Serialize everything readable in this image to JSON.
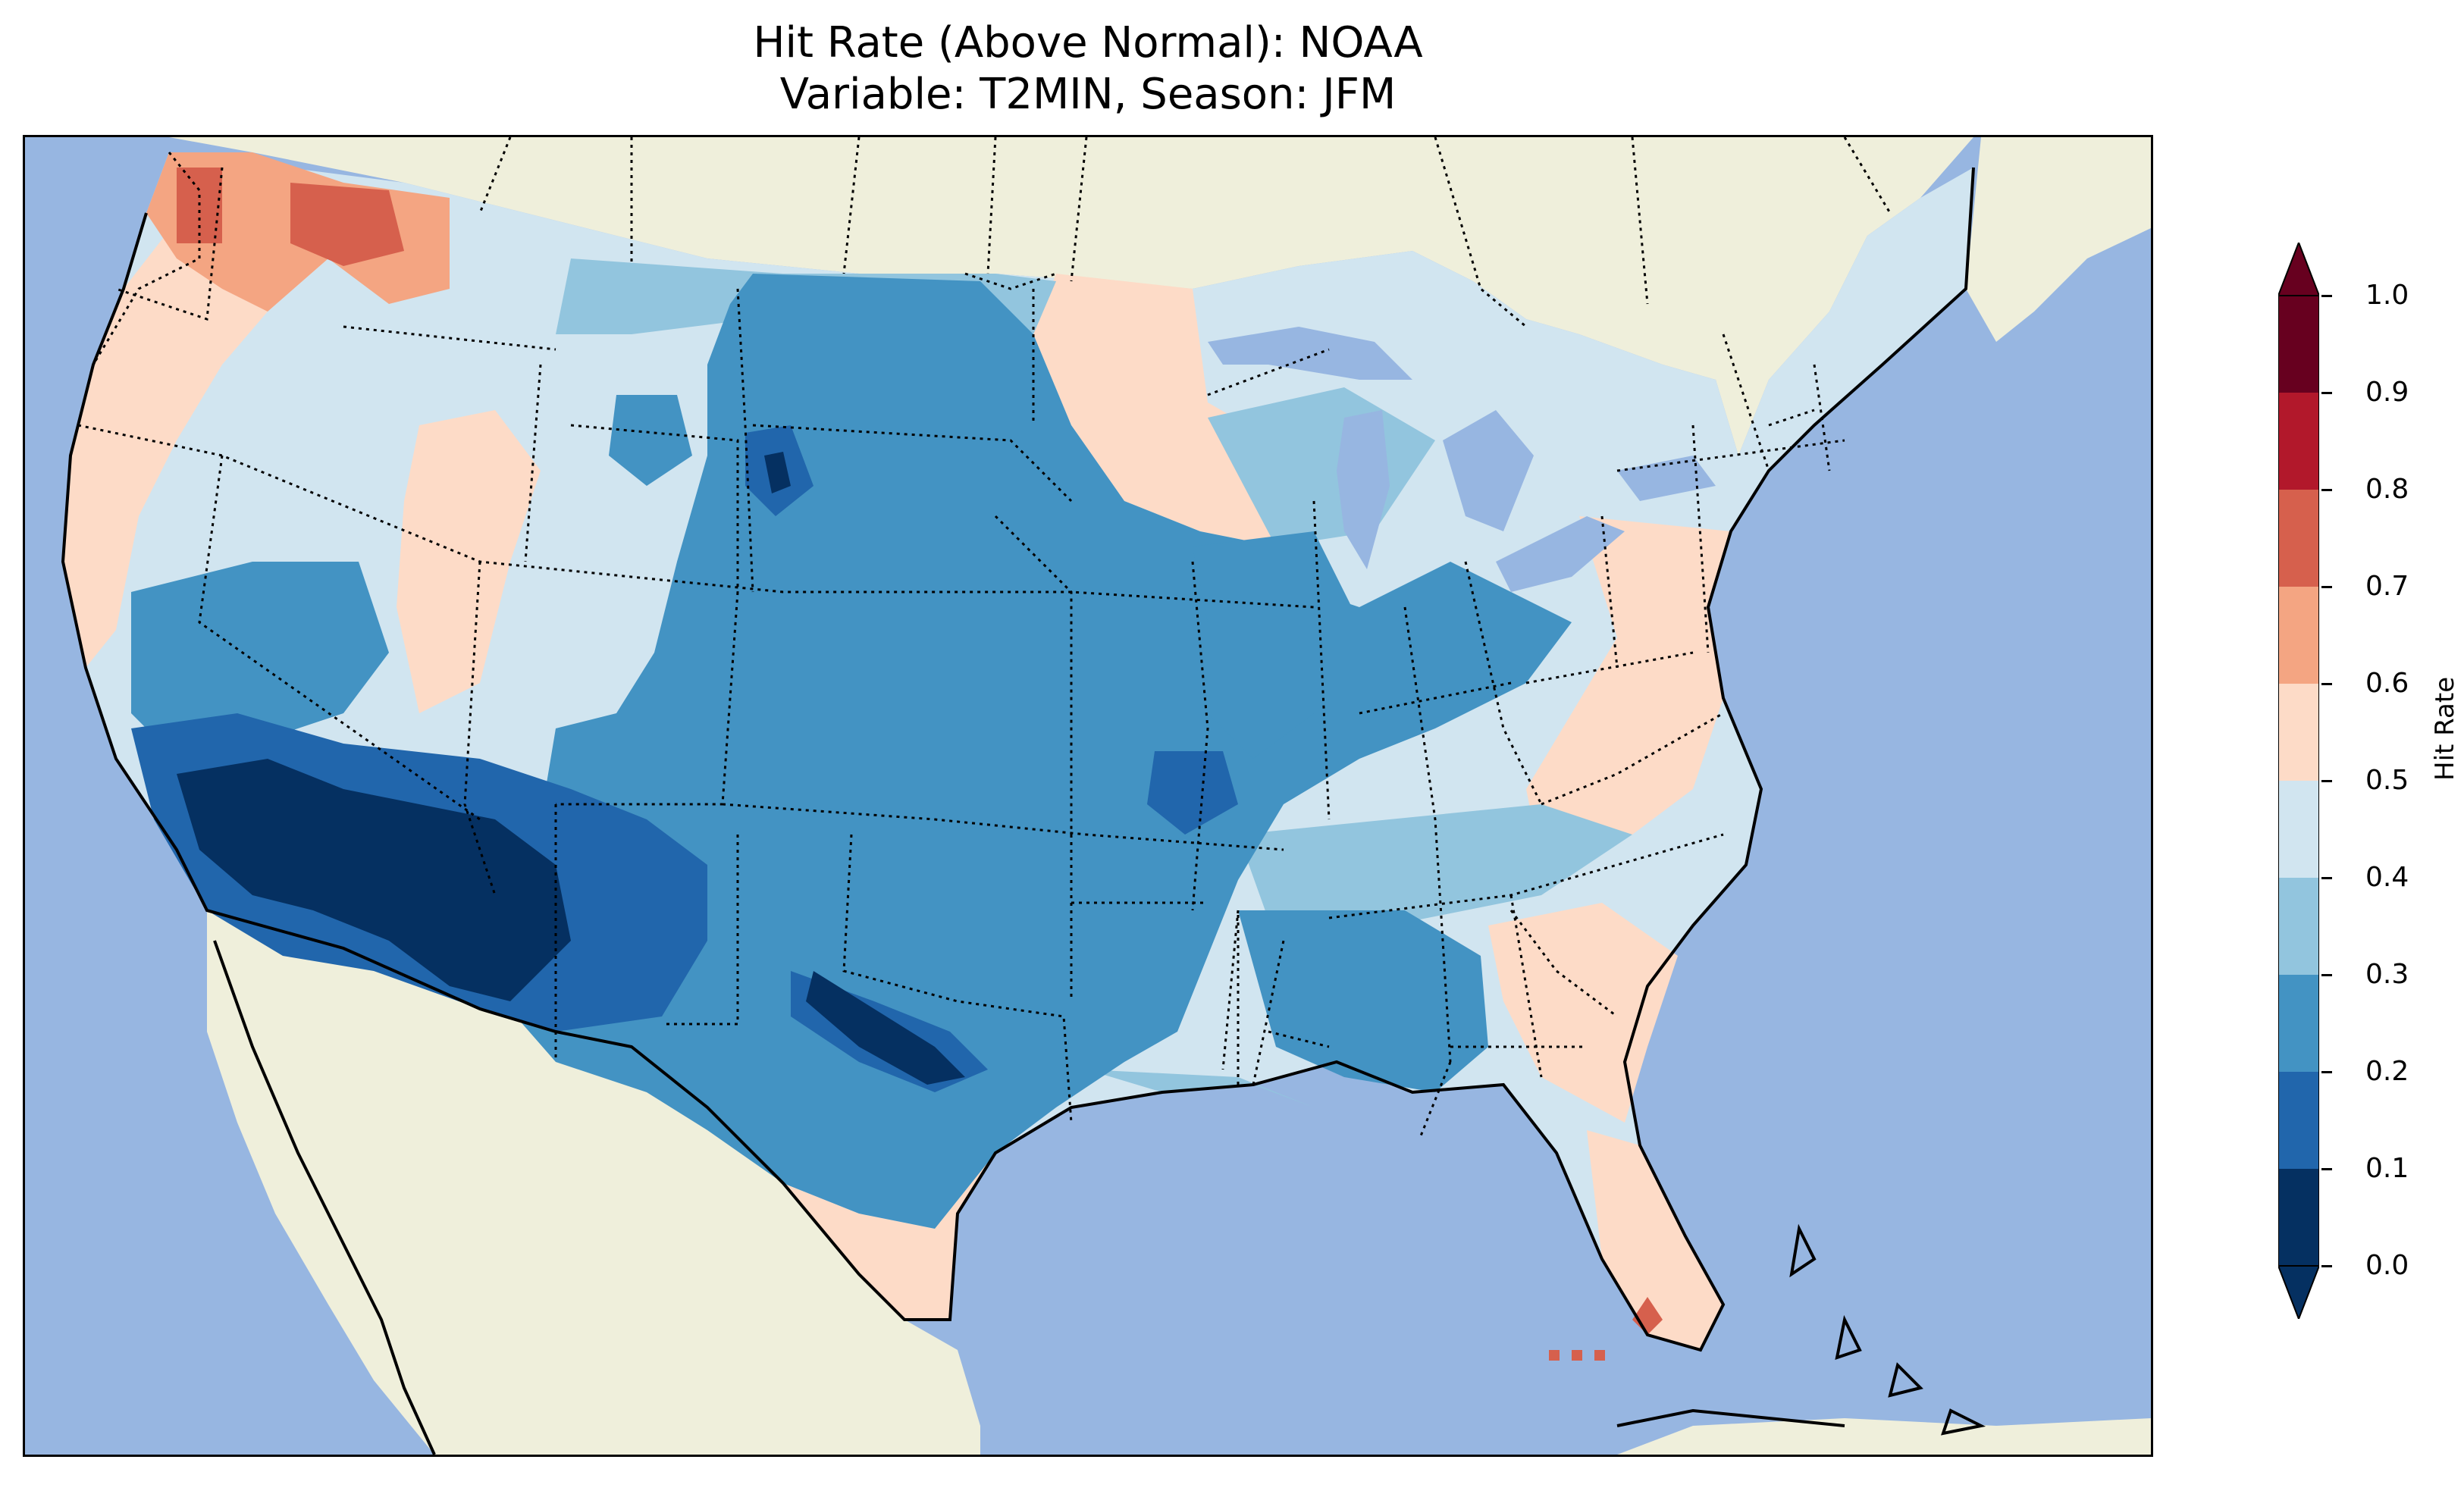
{
  "title": {
    "line1": "Hit Rate (Above Normal): NOAA",
    "line2": "Variable: T2MIN, Season: JFM"
  },
  "colors": {
    "ocean": "#97b6e1",
    "land": "#efefdb",
    "border": "#000000"
  },
  "colorbar": {
    "label": "Hit Rate",
    "ticks": [
      "0.0",
      "0.1",
      "0.2",
      "0.3",
      "0.4",
      "0.5",
      "0.6",
      "0.7",
      "0.8",
      "0.9",
      "1.0"
    ],
    "bins": [
      {
        "range": "0.0-0.1",
        "color": "#053061"
      },
      {
        "range": "0.1-0.2",
        "color": "#2166ac"
      },
      {
        "range": "0.2-0.3",
        "color": "#4393c3"
      },
      {
        "range": "0.3-0.4",
        "color": "#92c5de"
      },
      {
        "range": "0.4-0.5",
        "color": "#d1e5f0"
      },
      {
        "range": "0.5-0.6",
        "color": "#fddbc7"
      },
      {
        "range": "0.6-0.7",
        "color": "#f4a582"
      },
      {
        "range": "0.7-0.8",
        "color": "#d6604d"
      },
      {
        "range": "0.8-0.9",
        "color": "#b2182b"
      },
      {
        "range": "0.9-1.0",
        "color": "#67001f"
      }
    ],
    "extend": "both"
  }
}
